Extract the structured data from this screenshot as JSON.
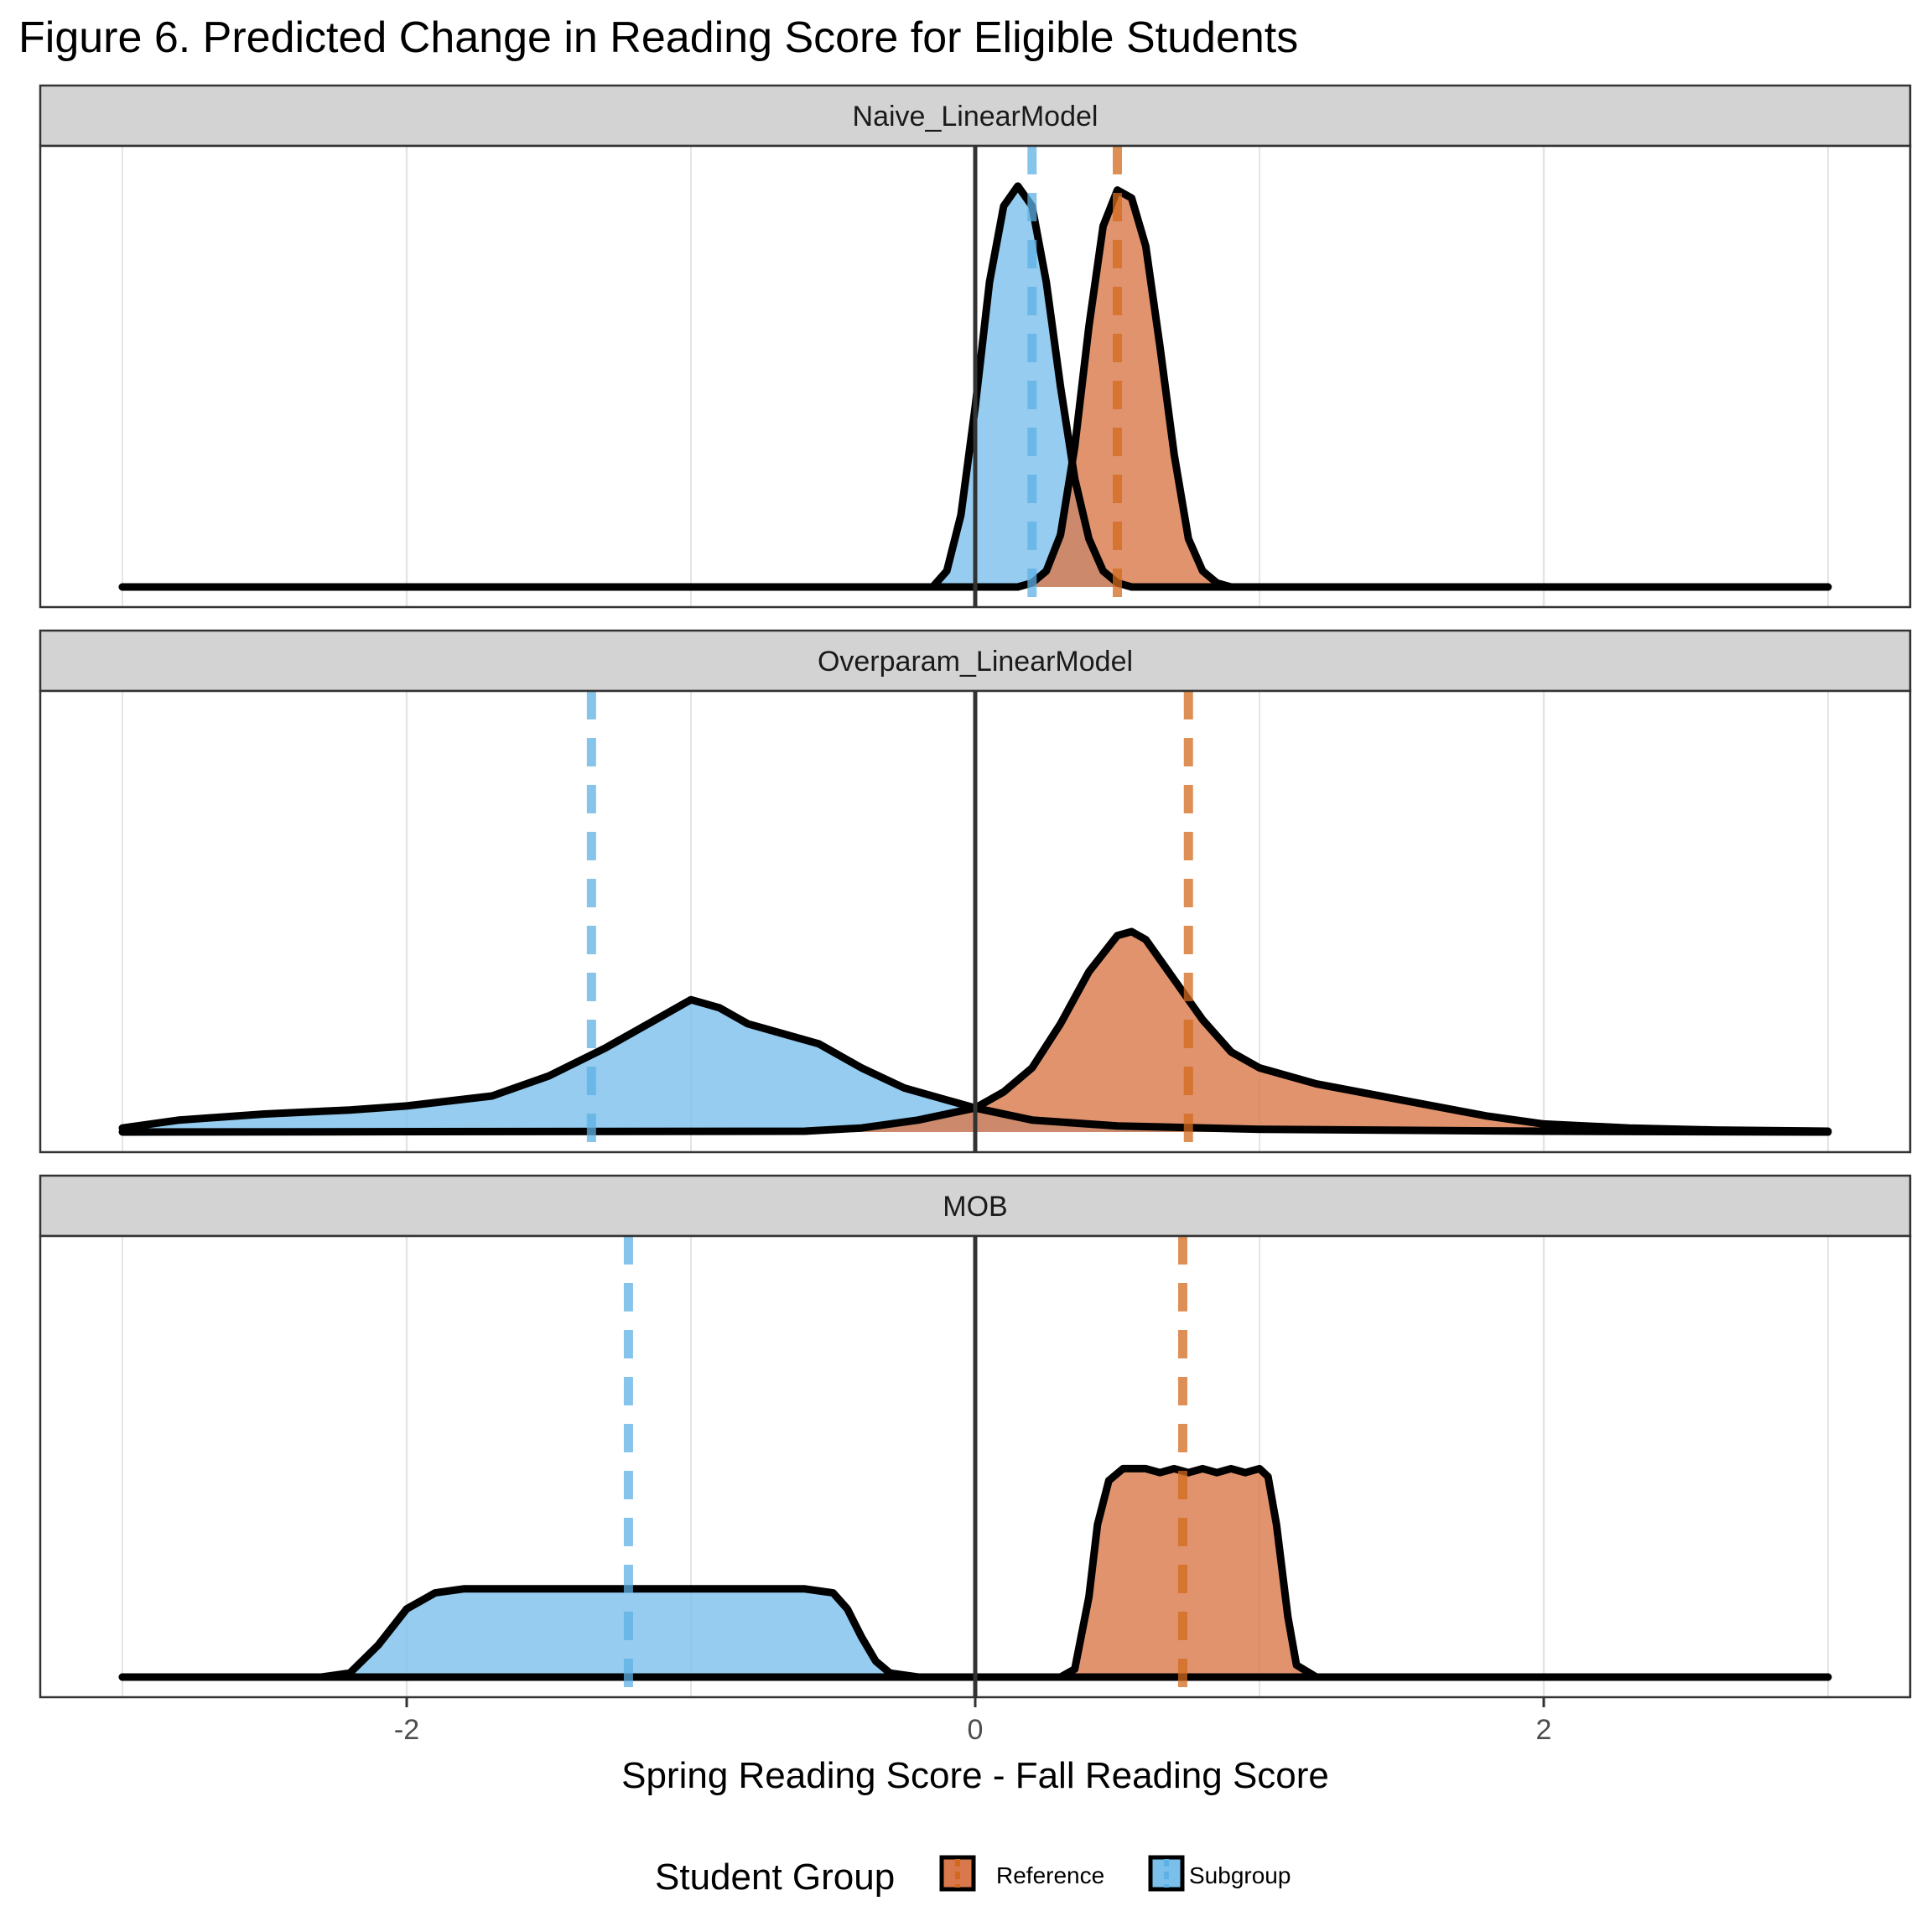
{
  "title": "Figure 6. Predicted Change in Reading Score for Eligible Students",
  "xlabel": "Spring Reading Score - Fall Reading Score",
  "legend": {
    "title": "Student Group",
    "items": [
      {
        "label": "Reference",
        "color": "#d2691e"
      },
      {
        "label": "Subgroup",
        "color": "#5eb0e5"
      }
    ]
  },
  "colors": {
    "reference_fill": "#d9784a",
    "subgroup_fill": "#7bbfeb",
    "reference_line": "#d2691e",
    "subgroup_line": "#5eb0e5",
    "strip_bg": "#d3d3d3",
    "grid": "#e5e5e5"
  },
  "chart_data": {
    "type": "area",
    "subtype": "density",
    "xlim": [
      -3.0,
      3.0
    ],
    "x_ticks": [
      -2,
      0,
      2
    ],
    "x_tick_labels": [
      "-2",
      "0",
      "2"
    ],
    "reference_vline_x": 0,
    "panels": [
      {
        "label": "Naive_LinearModel",
        "ymax": 1.05,
        "series": [
          {
            "name": "Subgroup",
            "x": [
              -3.0,
              -0.15,
              -0.1,
              -0.05,
              0.0,
              0.05,
              0.1,
              0.15,
              0.2,
              0.25,
              0.3,
              0.35,
              0.4,
              0.45,
              0.5,
              0.55,
              0.6,
              3.0
            ],
            "y": [
              0,
              0,
              0.04,
              0.18,
              0.45,
              0.76,
              0.95,
              1.0,
              0.95,
              0.76,
              0.5,
              0.27,
              0.12,
              0.04,
              0.01,
              0,
              0,
              0
            ],
            "mean": 0.2
          },
          {
            "name": "Reference",
            "x": [
              -3.0,
              0.15,
              0.2,
              0.25,
              0.3,
              0.35,
              0.4,
              0.45,
              0.5,
              0.55,
              0.6,
              0.65,
              0.7,
              0.75,
              0.8,
              0.85,
              0.9,
              3.0
            ],
            "y": [
              0,
              0,
              0.01,
              0.04,
              0.13,
              0.35,
              0.65,
              0.9,
              0.99,
              0.97,
              0.85,
              0.6,
              0.33,
              0.12,
              0.04,
              0.01,
              0,
              0
            ],
            "mean": 0.5
          }
        ]
      },
      {
        "label": "Overparam_LinearModel",
        "ymax": 1.05,
        "series": [
          {
            "name": "Subgroup",
            "x": [
              -3.0,
              -2.8,
              -2.5,
              -2.2,
              -2.0,
              -1.7,
              -1.5,
              -1.3,
              -1.15,
              -1.0,
              -0.9,
              -0.8,
              -0.7,
              -0.55,
              -0.4,
              -0.25,
              -0.1,
              0.0,
              0.2,
              0.5,
              1.0,
              2.0,
              3.0
            ],
            "y": [
              0.01,
              0.03,
              0.045,
              0.055,
              0.065,
              0.09,
              0.14,
              0.21,
              0.27,
              0.33,
              0.31,
              0.27,
              0.25,
              0.22,
              0.16,
              0.11,
              0.08,
              0.06,
              0.03,
              0.015,
              0.007,
              0.002,
              0
            ],
            "mean": -1.35
          },
          {
            "name": "Reference",
            "x": [
              -3.0,
              -0.6,
              -0.4,
              -0.2,
              0.0,
              0.1,
              0.2,
              0.3,
              0.4,
              0.5,
              0.55,
              0.6,
              0.7,
              0.8,
              0.9,
              1.0,
              1.2,
              1.5,
              1.8,
              2.0,
              2.3,
              2.6,
              3.0
            ],
            "y": [
              0,
              0.002,
              0.01,
              0.03,
              0.06,
              0.1,
              0.16,
              0.27,
              0.4,
              0.49,
              0.5,
              0.48,
              0.38,
              0.28,
              0.2,
              0.16,
              0.12,
              0.08,
              0.04,
              0.02,
              0.01,
              0.005,
              0.002
            ],
            "mean": 0.75
          }
        ]
      },
      {
        "label": "MOB",
        "ymax": 1.05,
        "series": [
          {
            "name": "Subgroup",
            "x": [
              -3.0,
              -2.3,
              -2.2,
              -2.1,
              -2.0,
              -1.9,
              -1.8,
              -1.5,
              -1.2,
              -0.9,
              -0.6,
              -0.5,
              -0.45,
              -0.4,
              -0.35,
              -0.3,
              -0.2,
              3.0
            ],
            "y": [
              0,
              0,
              0.01,
              0.08,
              0.17,
              0.21,
              0.22,
              0.22,
              0.22,
              0.22,
              0.22,
              0.21,
              0.17,
              0.1,
              0.04,
              0.01,
              0,
              0
            ],
            "mean": -1.22
          },
          {
            "name": "Reference",
            "x": [
              -3.0,
              0.3,
              0.35,
              0.4,
              0.43,
              0.47,
              0.52,
              0.6,
              0.65,
              0.7,
              0.75,
              0.8,
              0.85,
              0.9,
              0.95,
              1.0,
              1.03,
              1.06,
              1.1,
              1.13,
              1.2,
              3.0
            ],
            "y": [
              0,
              0,
              0.02,
              0.2,
              0.38,
              0.49,
              0.52,
              0.52,
              0.51,
              0.52,
              0.51,
              0.52,
              0.51,
              0.52,
              0.51,
              0.52,
              0.5,
              0.38,
              0.15,
              0.03,
              0,
              0
            ],
            "mean": 0.73
          }
        ]
      }
    ]
  }
}
